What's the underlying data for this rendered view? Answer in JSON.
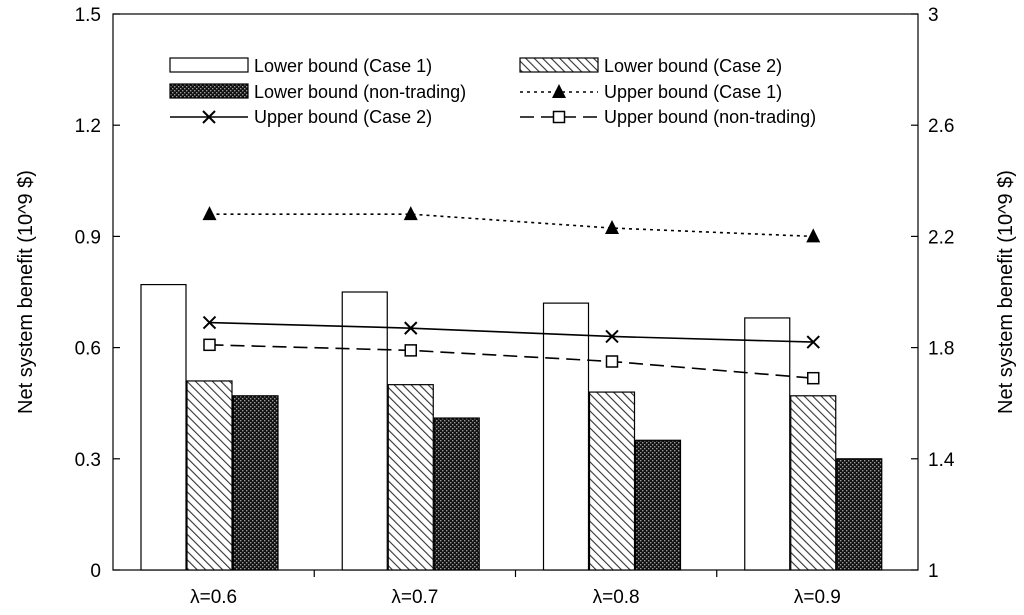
{
  "chart_data": {
    "type": "bar",
    "categories": [
      "λ=0.6",
      "λ=0.7",
      "λ=0.8",
      "λ=0.9"
    ],
    "title": "",
    "xlabel": "",
    "ylabel": "Net system benefit (10^9 $)",
    "y2label": "Net system benefit (10^9 $)",
    "ylim": [
      0,
      1.5
    ],
    "y2lim": [
      1,
      3
    ],
    "yticks": [
      "0",
      "0.3",
      "0.6",
      "0.9",
      "1.2",
      "1.5"
    ],
    "y2ticks": [
      "1",
      "1.4",
      "1.8",
      "2.2",
      "2.6",
      "3"
    ],
    "grid": false,
    "legend_placement": "top",
    "bar_series": [
      {
        "name": "Lower bound (Case 1)",
        "values": [
          0.77,
          0.75,
          0.72,
          0.68
        ],
        "style": "white"
      },
      {
        "name": "Lower bound (Case 2)",
        "values": [
          0.51,
          0.5,
          0.48,
          0.47
        ],
        "style": "hatch"
      },
      {
        "name": "Lower bound (non-trading)",
        "values": [
          0.47,
          0.41,
          0.35,
          0.3
        ],
        "style": "dots"
      }
    ],
    "line_series": [
      {
        "name": "Upper bound (Case 1)",
        "values": [
          2.28,
          2.28,
          2.23,
          2.2
        ],
        "marker": "triangle",
        "dash": "dotted"
      },
      {
        "name": "Upper bound (Case 2)",
        "values": [
          1.89,
          1.87,
          1.84,
          1.82
        ],
        "marker": "x",
        "dash": "solid"
      },
      {
        "name": "Upper bound (non-trading)",
        "values": [
          1.81,
          1.79,
          1.75,
          1.69
        ],
        "marker": "square",
        "dash": "dashed"
      }
    ]
  }
}
